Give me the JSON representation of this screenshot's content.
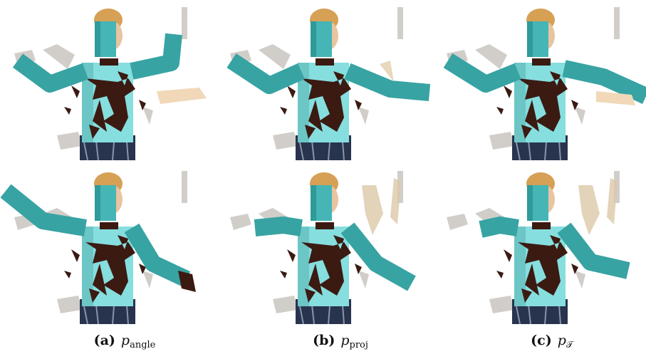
{
  "captions": [
    {
      "label": "(a)",
      "symbol": "p",
      "subscript": "angle"
    },
    {
      "label": "(b)",
      "symbol": "p",
      "subscript": "proj"
    },
    {
      "label": "(c)",
      "symbol": "p",
      "subscript": "𝒯"
    }
  ]
}
